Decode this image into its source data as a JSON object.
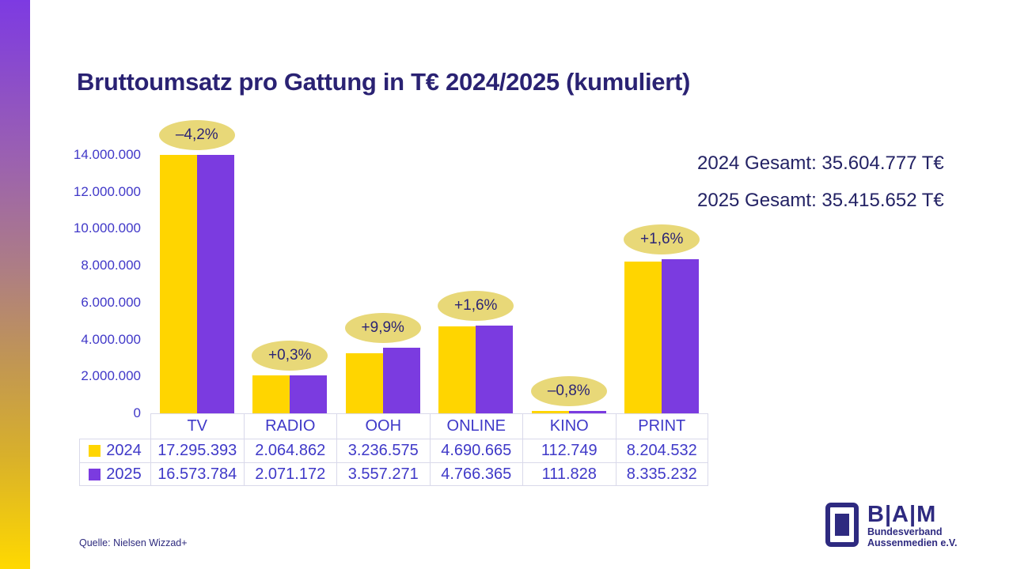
{
  "title": "Bruttoumsatz pro Gattung in T€ 2024/2025 (kumuliert)",
  "totals": {
    "line_2024": "2024 Gesamt: 35.604.777 T€",
    "line_2025": "2025 Gesamt: 35.415.652 T€"
  },
  "source": "Quelle: Nielsen Wizzad+",
  "logo": {
    "name": "B|A|M",
    "sub1": "Bundesverband",
    "sub2": "Aussenmedien e.V."
  },
  "colors": {
    "bar_2024_yellow": "#FFD500",
    "bar_2025_purple": "#7B3BE0",
    "badge_fill": "#E8D878",
    "navy_text": "#2A2273",
    "axis_text": "#4038C8",
    "table_border": "#D9D9EA"
  },
  "chart_data": {
    "type": "bar",
    "title": "Bruttoumsatz pro Gattung in T€ 2024/2025 (kumuliert)",
    "categories": [
      "TV",
      "RADIO",
      "OOH",
      "ONLINE",
      "KINO",
      "PRINT"
    ],
    "series": [
      {
        "name": "2024",
        "color": "#FFD500",
        "values": [
          17295393,
          2064862,
          3236575,
          4690665,
          112749,
          8204532
        ],
        "display": [
          "17.295.393",
          "2.064.862",
          "3.236.575",
          "4.690.665",
          "112.749",
          "8.204.532"
        ]
      },
      {
        "name": "2025",
        "color": "#7B3BE0",
        "values": [
          16573784,
          2071172,
          3557271,
          4766365,
          111828,
          8335232
        ],
        "display": [
          "16.573.784",
          "2.071.172",
          "3.557.271",
          "4.766.365",
          "111.828",
          "8.335.232"
        ]
      }
    ],
    "deltas": [
      "–4,2%",
      "+0,3%",
      "+9,9%",
      "+1,6%",
      "–0,8%",
      "+1,6%"
    ],
    "y_ticks": [
      "14.000.000",
      "12.000.000",
      "10.000.000",
      "8.000.000",
      "6.000.000",
      "4.000.000",
      "2.000.000",
      "0"
    ],
    "y_max": 14000000,
    "ylabel": "",
    "xlabel": "",
    "grid": false,
    "legend_position": "table-left",
    "note": "bars for TV exceed axis max and are clipped at 14.000.000"
  }
}
